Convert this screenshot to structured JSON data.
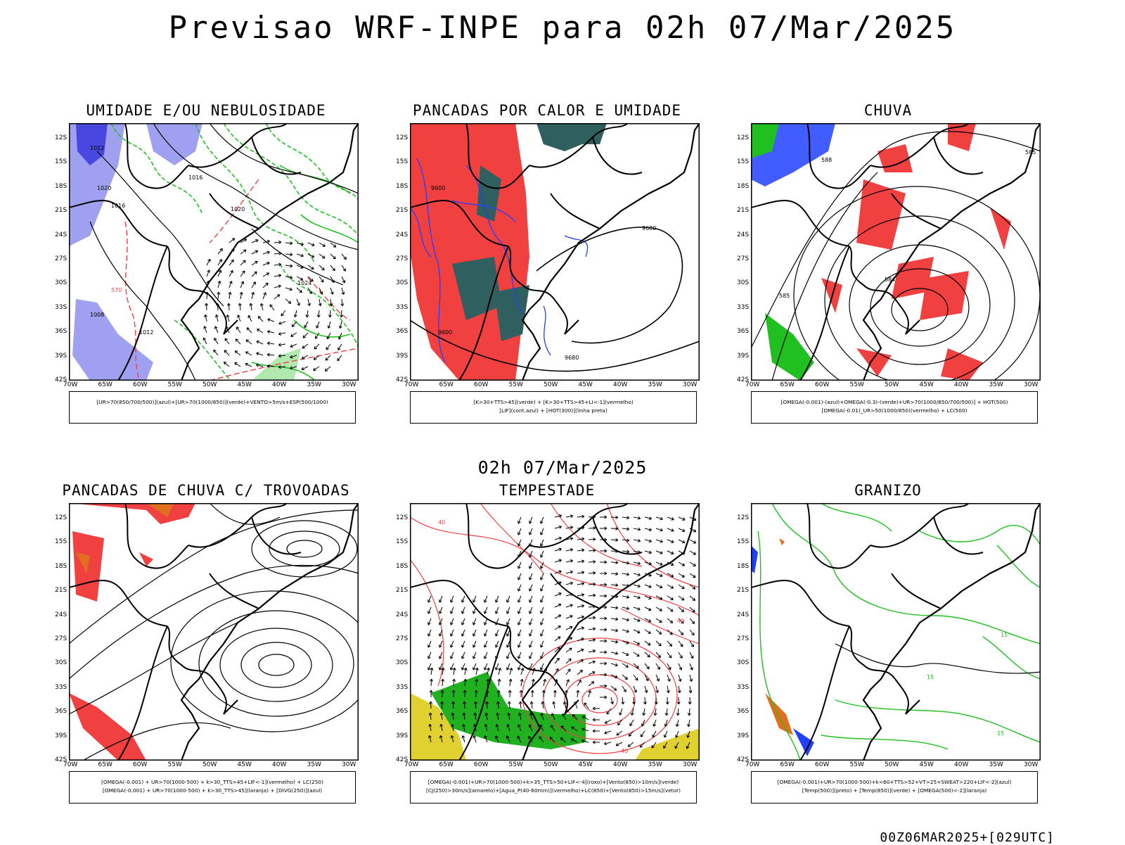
{
  "header": {
    "title": "Previsao WRF-INPE  para 02h 07/Mar/2025",
    "subtitle": "02h 07/Mar/2025",
    "footer": "00Z06MAR2025+[029UTC]"
  },
  "axes": {
    "lat_labels": [
      "12S",
      "15S",
      "18S",
      "21S",
      "24S",
      "27S",
      "30S",
      "33S",
      "36S",
      "39S",
      "42S"
    ],
    "lon_labels": [
      "70W",
      "65W",
      "60W",
      "55W",
      "50W",
      "45W",
      "40W",
      "35W",
      "30W"
    ]
  },
  "colors": {
    "moist_blue": "#a0a0f0",
    "moist_dark_blue": "#4848e0",
    "green": "#20c020",
    "red": "#f04040",
    "teal": "#2f5f5f",
    "blue_line": "#2040ff",
    "orange": "#e07020",
    "yellow": "#e0d030",
    "thunder_green": "#20b020"
  },
  "panels": [
    {
      "title": "UMIDADE E/OU NEBULOSIDADE",
      "legend": [
        "[UR>70(850/700/500)](azul)+[UR>70(1000/850)](verde)+VENTO>5m/s+ESP(500/1000)"
      ],
      "contour_labels": [
        "1012",
        "1016",
        "1020",
        "1024",
        "570",
        "1008",
        "1012",
        "1016",
        "1020"
      ]
    },
    {
      "title": "PANCADAS POR CALOR E UMIDADE",
      "legend": [
        "[K>30+TTS>45](verde) + [K>30+TTS>45+LI<-1](vermelho)",
        "[LIF](cont.azul) + [HGT(300)](linha preta)"
      ],
      "contour_labels": [
        "9600",
        "9680",
        "9680",
        "9600"
      ]
    },
    {
      "title": "CHUVA",
      "legend": [
        "[OMEGA(-0.001)-(azul)+OMEGA(-0.3)-(verde)+UR>70(1000/850/700/500)] + HGT(500)",
        "[OMEGA(-0.01)_UR>50(1000/850)(vermelho) + LC(500)"
      ],
      "contour_labels": [
        "585",
        "588",
        "585",
        "584"
      ]
    },
    {
      "title": "PANCADAS DE CHUVA C/ TROVOADAS",
      "legend": [
        "[OMEGA(-0.001) + UR>70(1000-500) + k>30_TTS>45+LIF<-1](vermelho) + LC(250)",
        "[OMEGA(-0.001) + UR>70(1000-500) + k>30_TTS>45](laranja) + [DIVG(250)](azul)"
      ],
      "contour_labels": []
    },
    {
      "title": "TEMPESTADE",
      "legend": [
        "[OMEGA(-0.001)+UR>70(1000-500)+k>35_TTS>50+LIF<-4](roxo)+[Vento(850)>10m/s](verde)",
        "[CJ(250)>30m/s](amarelo)+[Agua_P(40-60mm)](vermelho)+LC(850)+[Vento(850)>15m/s](vetor)"
      ],
      "contour_labels": [
        "40",
        "40",
        "40"
      ]
    },
    {
      "title": "GRANIZO",
      "legend": [
        "[OMEGA(-0.001)+UR>70(1000-500)+k<60+TTS>52+VT>25+SWEAT>220+LIF<-2](azul)",
        "[Temp(500)](preto) + [Temp(850)](verde) + [OMEGA(500)<-2](laranja)"
      ],
      "contour_labels": [
        "15",
        "15",
        "15"
      ]
    }
  ]
}
